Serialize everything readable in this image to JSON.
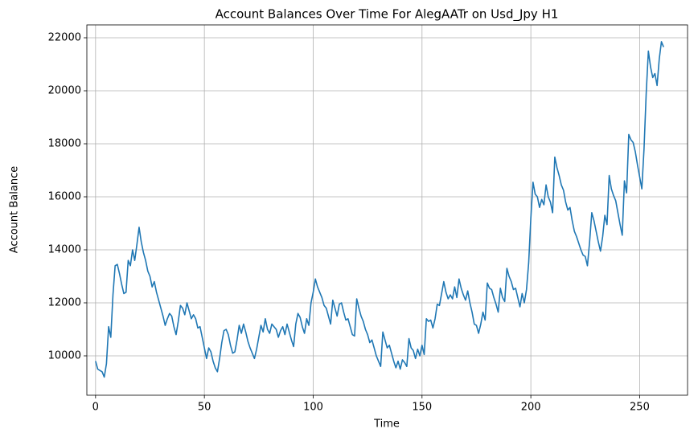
{
  "chart_data": {
    "type": "line",
    "title": "Account Balances Over Time For AlegAATr on Usd_Jpy H1",
    "x_label": "Time",
    "y_label": "Account Balance",
    "color": "#1f77b4",
    "grid": true,
    "xlim": [
      -4,
      272
    ],
    "ylim": [
      8515,
      22485
    ],
    "xticks": [
      0,
      50,
      100,
      150,
      200,
      250
    ],
    "yticks": [
      10000,
      12000,
      14000,
      16000,
      18000,
      20000,
      22000
    ],
    "x": [
      0,
      1,
      2,
      3,
      4,
      5,
      6,
      7,
      8,
      9,
      10,
      11,
      12,
      13,
      14,
      15,
      16,
      17,
      18,
      19,
      20,
      21,
      22,
      23,
      24,
      25,
      26,
      27,
      28,
      29,
      30,
      31,
      32,
      33,
      34,
      35,
      36,
      37,
      38,
      39,
      40,
      41,
      42,
      43,
      44,
      45,
      46,
      47,
      48,
      49,
      50,
      51,
      52,
      53,
      54,
      55,
      56,
      57,
      58,
      59,
      60,
      61,
      62,
      63,
      64,
      65,
      66,
      67,
      68,
      69,
      70,
      71,
      72,
      73,
      74,
      75,
      76,
      77,
      78,
      79,
      80,
      81,
      82,
      83,
      84,
      85,
      86,
      87,
      88,
      89,
      90,
      91,
      92,
      93,
      94,
      95,
      96,
      97,
      98,
      99,
      100,
      101,
      102,
      103,
      104,
      105,
      106,
      107,
      108,
      109,
      110,
      111,
      112,
      113,
      114,
      115,
      116,
      117,
      118,
      119,
      120,
      121,
      122,
      123,
      124,
      125,
      126,
      127,
      128,
      129,
      130,
      131,
      132,
      133,
      134,
      135,
      136,
      137,
      138,
      139,
      140,
      141,
      142,
      143,
      144,
      145,
      146,
      147,
      148,
      149,
      150,
      151,
      152,
      153,
      154,
      155,
      156,
      157,
      158,
      159,
      160,
      161,
      162,
      163,
      164,
      165,
      166,
      167,
      168,
      169,
      170,
      171,
      172,
      173,
      174,
      175,
      176,
      177,
      178,
      179,
      180,
      181,
      182,
      183,
      184,
      185,
      186,
      187,
      188,
      189,
      190,
      191,
      192,
      193,
      194,
      195,
      196,
      197,
      198,
      199,
      200,
      201,
      202,
      203,
      204,
      205,
      206,
      207,
      208,
      209,
      210,
      211,
      212,
      213,
      214,
      215,
      216,
      217,
      218,
      219,
      220,
      221,
      222,
      223,
      224,
      225,
      226,
      227,
      228,
      229,
      230,
      231,
      232,
      233,
      234,
      235,
      236,
      237,
      238,
      239,
      240,
      241,
      242,
      243,
      244,
      245,
      246,
      247,
      248,
      249,
      250,
      251,
      252,
      253,
      254,
      255,
      256,
      257,
      258,
      259,
      260,
      261
    ],
    "values": [
      9800,
      9500,
      9450,
      9400,
      9200,
      9700,
      11100,
      10700,
      12300,
      13400,
      13450,
      13100,
      12700,
      12350,
      12400,
      13600,
      13400,
      14000,
      13600,
      14200,
      14850,
      14300,
      13900,
      13600,
      13200,
      13000,
      12600,
      12800,
      12400,
      12100,
      11800,
      11500,
      11150,
      11400,
      11600,
      11500,
      11100,
      10800,
      11300,
      11900,
      11800,
      11550,
      12000,
      11700,
      11400,
      11550,
      11400,
      11050,
      11100,
      10700,
      10300,
      9900,
      10300,
      10150,
      9800,
      9550,
      9400,
      9900,
      10500,
      10950,
      11000,
      10800,
      10400,
      10100,
      10150,
      10600,
      11150,
      10850,
      11200,
      10900,
      10550,
      10300,
      10100,
      9900,
      10250,
      10700,
      11150,
      10900,
      11400,
      11000,
      10850,
      11200,
      11100,
      11000,
      10700,
      10950,
      11100,
      10800,
      11200,
      10900,
      10600,
      10350,
      11200,
      11600,
      11450,
      11100,
      10850,
      11400,
      11150,
      12000,
      12400,
      12900,
      12600,
      12400,
      12200,
      11900,
      11800,
      11500,
      11200,
      12100,
      11800,
      11500,
      11950,
      12000,
      11650,
      11350,
      11400,
      11100,
      10800,
      10750,
      12150,
      11800,
      11500,
      11300,
      11000,
      10800,
      10500,
      10600,
      10300,
      10000,
      9800,
      9600,
      10900,
      10600,
      10300,
      10400,
      10100,
      9800,
      9550,
      9800,
      9500,
      9850,
      9750,
      9600,
      10650,
      10300,
      10200,
      9900,
      10250,
      10000,
      10400,
      10050,
      11400,
      11300,
      11350,
      11050,
      11400,
      11950,
      11900,
      12350,
      12800,
      12400,
      12150,
      12300,
      12150,
      12600,
      12200,
      12900,
      12550,
      12300,
      12100,
      12450,
      12000,
      11650,
      11200,
      11150,
      10850,
      11200,
      11650,
      11350,
      12750,
      12550,
      12500,
      12200,
      11950,
      11650,
      12550,
      12200,
      12050,
      13300,
      13000,
      12800,
      12500,
      12550,
      12200,
      11850,
      12350,
      12000,
      12500,
      13500,
      15200,
      16550,
      16100,
      16000,
      15600,
      15900,
      15700,
      16450,
      16000,
      15800,
      15400,
      17500,
      17100,
      16800,
      16450,
      16250,
      15800,
      15500,
      15600,
      15100,
      14700,
      14500,
      14250,
      14000,
      13800,
      13750,
      13400,
      14300,
      15400,
      15100,
      14700,
      14300,
      13950,
      14500,
      15300,
      14950,
      16800,
      16300,
      16050,
      15850,
      15400,
      14950,
      14550,
      16600,
      16150,
      18350,
      18150,
      18050,
      17700,
      17200,
      16750,
      16300,
      17800,
      19900,
      21500,
      20900,
      20500,
      20650,
      20200,
      21200,
      21850,
      21650
    ]
  }
}
